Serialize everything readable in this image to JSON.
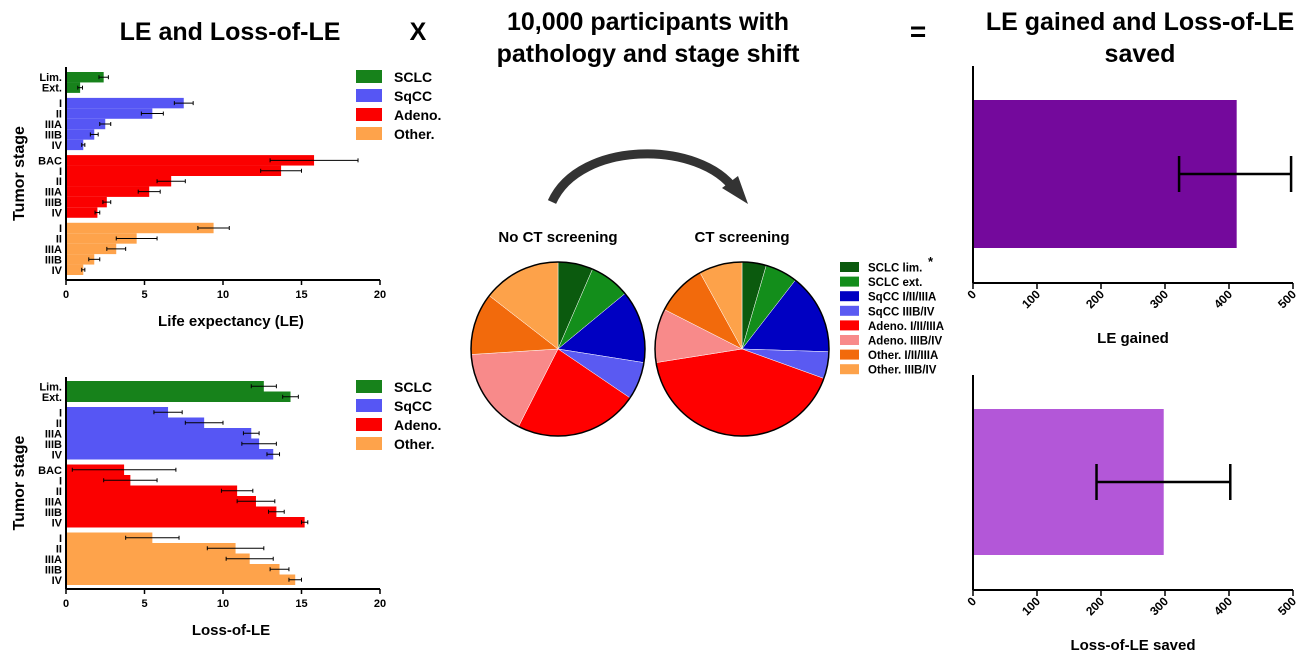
{
  "titles": {
    "left": "LE and Loss-of-LE",
    "times": "X",
    "middle": "10,000 participants with pathology and stage shift",
    "equals": "=",
    "right": "LE gained and Loss-of-LE saved"
  },
  "colors": {
    "SCLC": "#17821b",
    "SqCC": "#5656f4",
    "Adeno.": "#fb0000",
    "Other.": "#fea34b",
    "le_gained": "#74099c",
    "loss_saved": "#b357d8"
  },
  "chart_data": [
    {
      "id": "le",
      "type": "bar",
      "orientation": "horizontal",
      "ylabel": "Tumor stage",
      "xlabel": "Life expectancy (LE)",
      "xlim": [
        0,
        20
      ],
      "xticks": [
        "0",
        "5",
        "10",
        "15",
        "20"
      ],
      "legend": [
        "SCLC",
        "SqCC",
        "Adeno.",
        "Other."
      ],
      "legend_position": "top-right",
      "groups": [
        {
          "name": "SCLC",
          "bars": [
            {
              "label": "Lim.",
              "value": 2.4,
              "err": 0.3
            },
            {
              "label": "Ext.",
              "value": 0.9,
              "err": 0.15
            }
          ]
        },
        {
          "name": "SqCC",
          "bars": [
            {
              "label": "I",
              "value": 7.5,
              "err": 0.6
            },
            {
              "label": "II",
              "value": 5.5,
              "err": 0.7
            },
            {
              "label": "IIIA",
              "value": 2.5,
              "err": 0.35
            },
            {
              "label": "IIIB",
              "value": 1.8,
              "err": 0.25
            },
            {
              "label": "IV",
              "value": 1.1,
              "err": 0.1
            }
          ]
        },
        {
          "name": "Adeno.",
          "bars": [
            {
              "label": "BAC",
              "value": 15.8,
              "err": 2.8
            },
            {
              "label": "I",
              "value": 13.7,
              "err": 1.3
            },
            {
              "label": "II",
              "value": 6.7,
              "err": 0.9
            },
            {
              "label": "IIIA",
              "value": 5.3,
              "err": 0.7
            },
            {
              "label": "IIIB",
              "value": 2.6,
              "err": 0.25
            },
            {
              "label": "IV",
              "value": 2.0,
              "err": 0.15
            }
          ]
        },
        {
          "name": "Other.",
          "bars": [
            {
              "label": "I",
              "value": 9.4,
              "err": 1.0
            },
            {
              "label": "II",
              "value": 4.5,
              "err": 1.3
            },
            {
              "label": "IIIA",
              "value": 3.2,
              "err": 0.6
            },
            {
              "label": "IIIB",
              "value": 1.8,
              "err": 0.35
            },
            {
              "label": "IV",
              "value": 1.1,
              "err": 0.1
            }
          ]
        }
      ]
    },
    {
      "id": "loss",
      "type": "bar",
      "orientation": "horizontal",
      "ylabel": "Tumor stage",
      "xlabel": "Loss-of-LE",
      "xlim": [
        0,
        20
      ],
      "xticks": [
        "0",
        "5",
        "10",
        "15",
        "20"
      ],
      "legend": [
        "SCLC",
        "SqCC",
        "Adeno.",
        "Other."
      ],
      "legend_position": "top-right",
      "groups": [
        {
          "name": "SCLC",
          "bars": [
            {
              "label": "Lim.",
              "value": 12.6,
              "err": 0.8
            },
            {
              "label": "Ext.",
              "value": 14.3,
              "err": 0.5
            }
          ]
        },
        {
          "name": "SqCC",
          "bars": [
            {
              "label": "I",
              "value": 6.5,
              "err": 0.9
            },
            {
              "label": "II",
              "value": 8.8,
              "err": 1.2
            },
            {
              "label": "IIIA",
              "value": 11.8,
              "err": 0.5
            },
            {
              "label": "IIIB",
              "value": 12.3,
              "err": 1.1
            },
            {
              "label": "IV",
              "value": 13.2,
              "err": 0.4
            }
          ]
        },
        {
          "name": "Adeno.",
          "bars": [
            {
              "label": "BAC",
              "value": 3.7,
              "err": 3.3
            },
            {
              "label": "I",
              "value": 4.1,
              "err": 1.7
            },
            {
              "label": "II",
              "value": 10.9,
              "err": 1.0
            },
            {
              "label": "IIIA",
              "value": 12.1,
              "err": 1.2
            },
            {
              "label": "IIIB",
              "value": 13.4,
              "err": 0.5
            },
            {
              "label": "IV",
              "value": 15.2,
              "err": 0.2
            }
          ]
        },
        {
          "name": "Other.",
          "bars": [
            {
              "label": "I",
              "value": 5.5,
              "err": 1.7
            },
            {
              "label": "II",
              "value": 10.8,
              "err": 1.8
            },
            {
              "label": "IIIA",
              "value": 11.7,
              "err": 1.5
            },
            {
              "label": "IIIB",
              "value": 13.6,
              "err": 0.6
            },
            {
              "label": "IV",
              "value": 14.6,
              "err": 0.4
            }
          ]
        }
      ]
    },
    {
      "id": "pies",
      "type": "pie",
      "arrow": "No CT screening to CT screening",
      "legend": [
        {
          "label": "SCLC lim.",
          "color": "#0b5a0e",
          "marker": "*"
        },
        {
          "label": "SCLC ext.",
          "color": "#138e1b"
        },
        {
          "label": "SqCC I/II/IIIA",
          "color": "#0000c2"
        },
        {
          "label": "SqCC IIIB/IV",
          "color": "#5a5af2"
        },
        {
          "label": "Adeno. I/II/IIIA",
          "color": "#ff0000"
        },
        {
          "label": "Adeno. IIIB/IV",
          "color": "#f88a8a"
        },
        {
          "label": "Other. I/II/IIIA",
          "color": "#f26a0c"
        },
        {
          "label": "Other. IIIB/IV",
          "color": "#fda24a"
        }
      ],
      "pies": [
        {
          "title": "No CT screening",
          "values": [
            6.5,
            7.5,
            13.5,
            7.0,
            23.0,
            16.5,
            11.5,
            14.5
          ]
        },
        {
          "title": "CT screening",
          "values": [
            4.5,
            6.0,
            15.0,
            5.0,
            42.0,
            10.0,
            9.5,
            8.0
          ]
        }
      ]
    },
    {
      "id": "le_gained",
      "type": "bar",
      "orientation": "horizontal",
      "xlabel": "LE gained",
      "xlim": [
        0,
        500
      ],
      "xticks": [
        "0",
        "100",
        "200",
        "300",
        "400",
        "500"
      ],
      "value": 412,
      "err_low": 322,
      "err_high": 497
    },
    {
      "id": "loss_saved",
      "type": "bar",
      "orientation": "horizontal",
      "xlabel": "Loss-of-LE saved",
      "xlim": [
        0,
        500
      ],
      "xticks": [
        "0",
        "100",
        "200",
        "300",
        "400",
        "500"
      ],
      "value": 298,
      "err_low": 193,
      "err_high": 402
    }
  ]
}
